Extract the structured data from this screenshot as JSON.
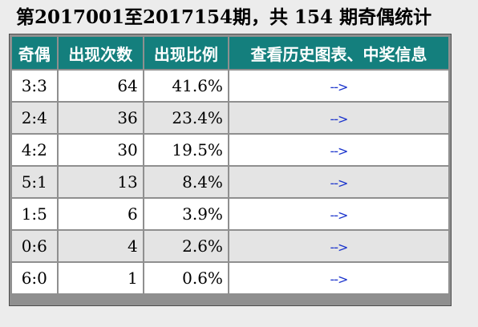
{
  "title": "第2017001至2017154期，共 154 期奇偶统计",
  "table": {
    "headers": [
      "奇偶",
      "出现次数",
      "出现比例",
      "查看历史图表、中奖信息"
    ],
    "rows": [
      {
        "ratio": "3:3",
        "count": "64",
        "percent": "41.6%",
        "link": "-->"
      },
      {
        "ratio": "2:4",
        "count": "36",
        "percent": "23.4%",
        "link": "-->"
      },
      {
        "ratio": "4:2",
        "count": "30",
        "percent": "19.5%",
        "link": "-->"
      },
      {
        "ratio": "5:1",
        "count": "13",
        "percent": "8.4%",
        "link": "-->"
      },
      {
        "ratio": "1:5",
        "count": "6",
        "percent": "3.9%",
        "link": "-->"
      },
      {
        "ratio": "0:6",
        "count": "4",
        "percent": "2.6%",
        "link": "-->"
      },
      {
        "ratio": "6:0",
        "count": "1",
        "percent": "0.6%",
        "link": "-->"
      }
    ]
  },
  "colors": {
    "header_bg": "#147f7d",
    "header_text": "#ffffff",
    "row_odd_bg": "#ffffff",
    "row_even_bg": "#e4e4e4",
    "link": "#1a33cc",
    "page_bg": "#ececec"
  },
  "icons": {
    "row_link": "arrow-right-icon"
  }
}
